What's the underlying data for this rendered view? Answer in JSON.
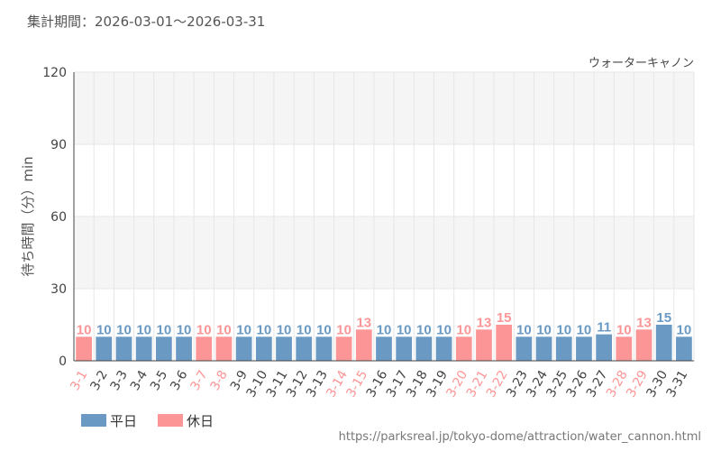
{
  "header": {
    "period_label": "集計期間：2026-03-01～2026-03-31"
  },
  "footer": {
    "url": "https://parksreal.jp/tokyo-dome/attraction/water_cannon.html"
  },
  "colors": {
    "weekday": "#6a9ac4",
    "holiday": "#fc9696",
    "band": "#f5f5f5",
    "grid": "#e6e6e6",
    "axis": "#444444",
    "text": "#555555"
  },
  "chart_data": {
    "type": "bar",
    "title": "ウォーターキャノン",
    "ylabel": "待ち時間（分）min",
    "xlabel": "",
    "ylim": [
      0,
      120
    ],
    "yticks": [
      0,
      30,
      60,
      90,
      120
    ],
    "grid": true,
    "legend_position": "bottom-left",
    "legend": [
      {
        "key": "weekday",
        "label": "平日"
      },
      {
        "key": "holiday",
        "label": "休日"
      }
    ],
    "categories": [
      "3-1",
      "3-2",
      "3-3",
      "3-4",
      "3-5",
      "3-6",
      "3-7",
      "3-8",
      "3-9",
      "3-10",
      "3-11",
      "3-12",
      "3-13",
      "3-14",
      "3-15",
      "3-16",
      "3-17",
      "3-18",
      "3-19",
      "3-20",
      "3-21",
      "3-22",
      "3-23",
      "3-24",
      "3-25",
      "3-26",
      "3-27",
      "3-28",
      "3-29",
      "3-30",
      "3-31"
    ],
    "values": [
      10,
      10,
      10,
      10,
      10,
      10,
      10,
      10,
      10,
      10,
      10,
      10,
      10,
      10,
      13,
      10,
      10,
      10,
      10,
      10,
      13,
      15,
      10,
      10,
      10,
      10,
      11,
      10,
      13,
      15,
      10
    ],
    "day_types": [
      "holiday",
      "weekday",
      "weekday",
      "weekday",
      "weekday",
      "weekday",
      "holiday",
      "holiday",
      "weekday",
      "weekday",
      "weekday",
      "weekday",
      "weekday",
      "holiday",
      "holiday",
      "weekday",
      "weekday",
      "weekday",
      "weekday",
      "holiday",
      "holiday",
      "holiday",
      "weekday",
      "weekday",
      "weekday",
      "weekday",
      "weekday",
      "holiday",
      "holiday",
      "weekday",
      "weekday"
    ]
  }
}
